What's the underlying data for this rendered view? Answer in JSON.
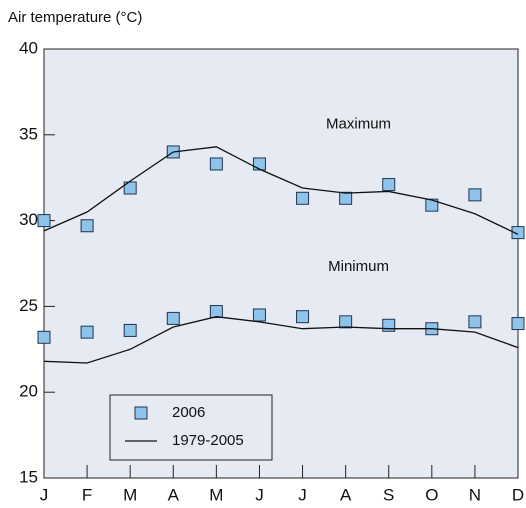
{
  "chart_data": {
    "type": "line",
    "y_label": "Air temperature (°C)",
    "categories": [
      "J",
      "F",
      "M",
      "A",
      "M",
      "J",
      "J",
      "A",
      "S",
      "O",
      "N",
      "D"
    ],
    "ylim": [
      15,
      40
    ],
    "yticks": [
      15,
      20,
      25,
      30,
      35,
      40
    ],
    "annotations": [
      {
        "text": "Maximum",
        "x": 7.3,
        "y": 35.6
      },
      {
        "text": "Minimum",
        "x": 7.3,
        "y": 27.3
      }
    ],
    "series": [
      {
        "name": "2006",
        "marker": "square",
        "color": "#8fc3ea",
        "maximum": [
          30.0,
          29.7,
          31.9,
          34.0,
          33.3,
          33.3,
          31.3,
          31.3,
          32.1,
          30.9,
          31.5,
          29.3
        ],
        "minimum": [
          23.2,
          23.5,
          23.6,
          24.3,
          24.7,
          24.5,
          24.4,
          24.1,
          23.9,
          23.7,
          24.1,
          24.0
        ]
      },
      {
        "name": "1979-2005",
        "marker": "line",
        "color": "#111111",
        "maximum": [
          29.4,
          30.5,
          32.3,
          34.0,
          34.3,
          33.0,
          31.9,
          31.6,
          31.7,
          31.2,
          30.4,
          29.2
        ],
        "minimum": [
          21.8,
          21.7,
          22.5,
          23.8,
          24.4,
          24.1,
          23.7,
          23.8,
          23.7,
          23.7,
          23.5,
          22.6
        ]
      }
    ]
  }
}
